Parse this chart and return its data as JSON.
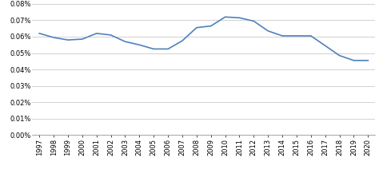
{
  "years": [
    1997,
    1998,
    1999,
    2000,
    2001,
    2002,
    2003,
    2004,
    2005,
    2006,
    2007,
    2008,
    2009,
    2010,
    2011,
    2012,
    2013,
    2014,
    2015,
    2016,
    2017,
    2018,
    2019,
    2020
  ],
  "values": [
    0.00062,
    0.000595,
    0.00058,
    0.000585,
    0.00062,
    0.00061,
    0.00057,
    0.00055,
    0.000525,
    0.000525,
    0.000575,
    0.000655,
    0.000665,
    0.00072,
    0.000715,
    0.000695,
    0.000635,
    0.000605,
    0.000605,
    0.000605,
    0.000545,
    0.000485,
    0.000455,
    0.000455
  ],
  "line_color": "#4e81bd",
  "line_width": 1.2,
  "background_color": "#ffffff",
  "grid_color": "#bfbfbf",
  "tick_fontsize": 6.0,
  "ytick_positions": [
    0.0,
    0.0001,
    0.0002,
    0.0003,
    0.0004,
    0.0005,
    0.0006,
    0.0007,
    0.0008
  ],
  "ytick_labels": [
    "0.00%",
    "0.01%",
    "0.02%",
    "0.03%",
    "0.04%",
    "0.05%",
    "0.06%",
    "0.07%",
    "0.08%"
  ]
}
